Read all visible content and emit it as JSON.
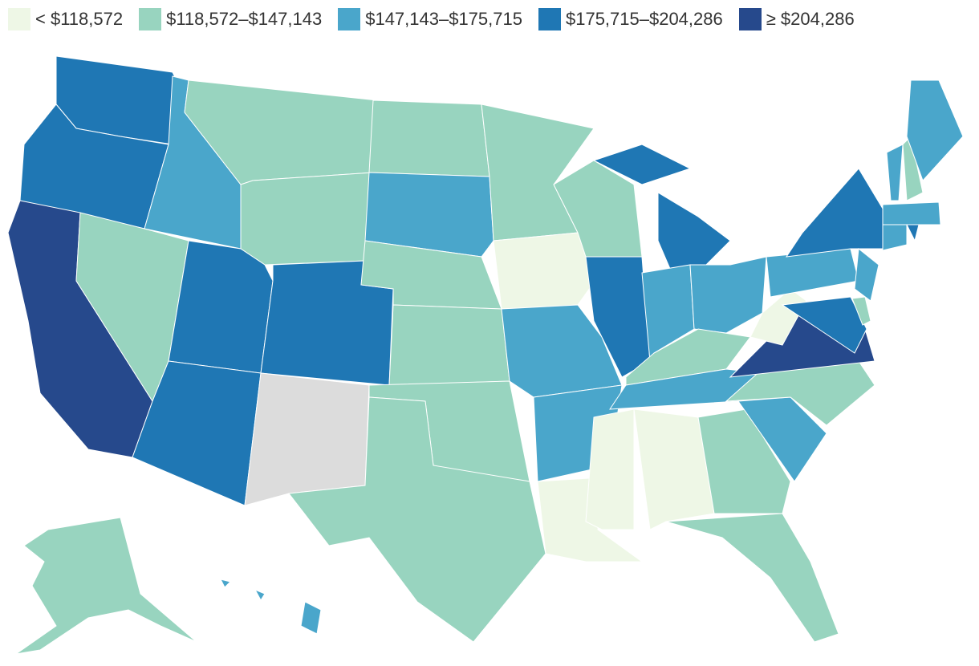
{
  "legend": [
    {
      "label": "< $118,572",
      "color": "#eef7e6"
    },
    {
      "label": "$118,572–$147,143",
      "color": "#98d4bf"
    },
    {
      "label": "$147,143–$175,715",
      "color": "#4aa6cb"
    },
    {
      "label": "$175,715–$204,286",
      "color": "#1f77b4"
    },
    {
      "label": "≥ $204,286",
      "color": "#26498c"
    }
  ]
}
